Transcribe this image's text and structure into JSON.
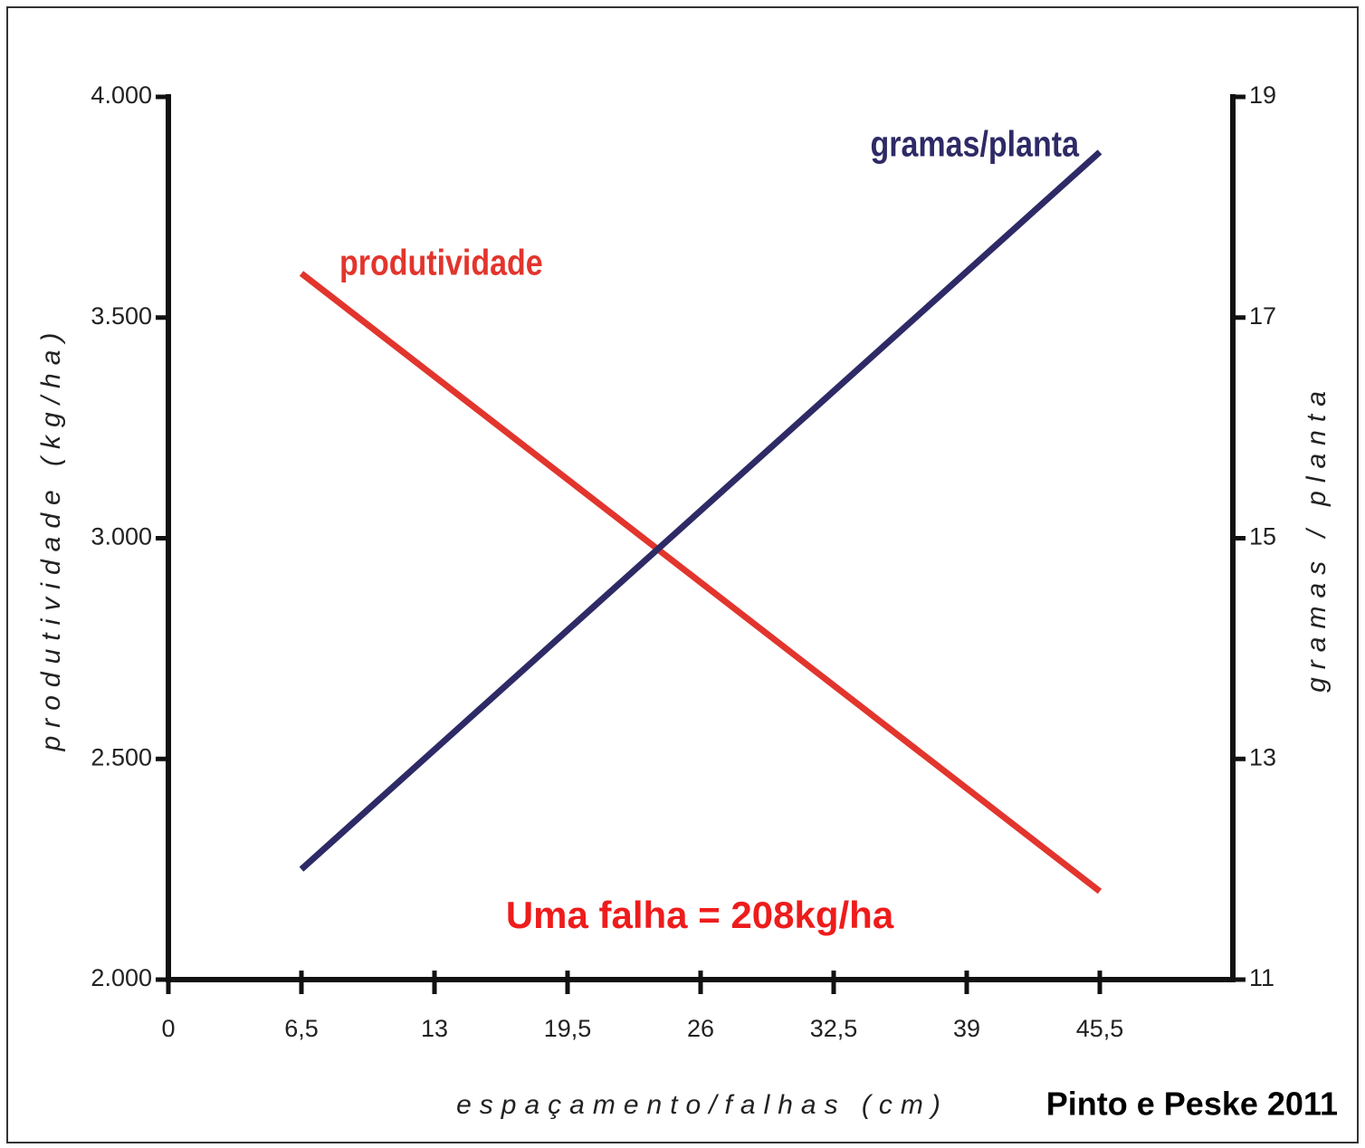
{
  "chart_data": {
    "type": "line",
    "x_label": "espaçamento/falhas (cm)",
    "y_label": "produtividade (kg/ha)",
    "y2_label": "gramas / planta",
    "annotation": "Uma falha = 208kg/ha",
    "source": "Pinto e Peske 2011",
    "x": [
      6.5,
      45.5
    ],
    "series": [
      {
        "name": "produtividade",
        "color": "#e2352d",
        "values": [
          3600,
          2200
        ]
      },
      {
        "name": "gramas/planta",
        "color": "#2e2a66",
        "axis": "y2",
        "values": [
          12,
          18.5
        ]
      }
    ],
    "xlim": [
      0,
      52
    ],
    "xticks": [
      0,
      {
        "value": 6.5,
        "label": "6,5"
      },
      13,
      {
        "value": 19.5,
        "label": "19,5"
      },
      26,
      {
        "value": 32.5,
        "label": "32,5"
      },
      39,
      {
        "value": 45.5,
        "label": "45,5"
      }
    ],
    "ylim": [
      2000,
      4000
    ],
    "yticks": [
      {
        "value": 2000,
        "label": "2.000"
      },
      {
        "value": 2500,
        "label": "2.500"
      },
      {
        "value": 3000,
        "label": "3.000"
      },
      {
        "value": 3500,
        "label": "3.500"
      },
      {
        "value": 4000,
        "label": "4.000"
      }
    ],
    "y2lim": [
      11,
      19
    ],
    "y2ticks": [
      11,
      13,
      15,
      17,
      19
    ]
  }
}
